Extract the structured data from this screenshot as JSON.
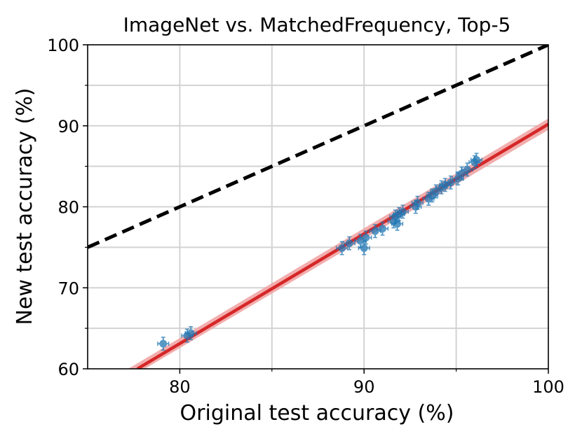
{
  "chart_data": {
    "type": "scatter",
    "title": "ImageNet vs. MatchedFrequency, Top-5",
    "xlabel": "Original test accuracy (%)",
    "ylabel": "New test accuracy (%)",
    "xlim": [
      75,
      100
    ],
    "ylim": [
      60,
      100
    ],
    "xticks": [
      80,
      90,
      100
    ],
    "yticks": [
      60,
      70,
      80,
      90,
      100
    ],
    "grid": true,
    "colors": {
      "points": "#1f77b4",
      "fit_line": "#d62728",
      "fit_band": "#f0a0a0",
      "reference_line": "#000000",
      "grid": "#d3d3d3"
    },
    "reference_line": {
      "x": [
        75,
        100
      ],
      "y": [
        75,
        100
      ],
      "style": "dashed"
    },
    "fit_line": {
      "x": [
        77.7,
        100
      ],
      "y": [
        60,
        90.2
      ]
    },
    "fit_band": {
      "x": [
        77.2,
        100
      ],
      "upper": [
        60,
        90.9
      ],
      "lower": [
        60,
        89.5
      ]
    },
    "points": [
      {
        "x": 79.1,
        "y": 63.1,
        "xerr": 0.3,
        "yerr": 0.8
      },
      {
        "x": 80.4,
        "y": 64.1,
        "xerr": 0.3,
        "yerr": 0.8
      },
      {
        "x": 80.6,
        "y": 64.4,
        "xerr": 0.3,
        "yerr": 0.8
      },
      {
        "x": 88.8,
        "y": 74.9,
        "xerr": 0.3,
        "yerr": 0.8
      },
      {
        "x": 89.2,
        "y": 75.5,
        "xerr": 0.3,
        "yerr": 0.8
      },
      {
        "x": 89.8,
        "y": 75.8,
        "xerr": 0.3,
        "yerr": 0.8
      },
      {
        "x": 90.0,
        "y": 74.9,
        "xerr": 0.3,
        "yerr": 0.8
      },
      {
        "x": 90.1,
        "y": 76.2,
        "xerr": 0.3,
        "yerr": 0.8
      },
      {
        "x": 90.6,
        "y": 77.0,
        "xerr": 0.3,
        "yerr": 0.8
      },
      {
        "x": 91.0,
        "y": 77.3,
        "xerr": 0.3,
        "yerr": 0.8
      },
      {
        "x": 91.6,
        "y": 78.2,
        "xerr": 0.3,
        "yerr": 0.8
      },
      {
        "x": 91.7,
        "y": 78.8,
        "xerr": 0.3,
        "yerr": 0.8
      },
      {
        "x": 91.8,
        "y": 77.9,
        "xerr": 0.3,
        "yerr": 0.8
      },
      {
        "x": 91.9,
        "y": 79.1,
        "xerr": 0.3,
        "yerr": 0.8
      },
      {
        "x": 92.1,
        "y": 79.4,
        "xerr": 0.3,
        "yerr": 0.8
      },
      {
        "x": 92.8,
        "y": 80.0,
        "xerr": 0.3,
        "yerr": 0.8
      },
      {
        "x": 92.9,
        "y": 80.5,
        "xerr": 0.3,
        "yerr": 0.8
      },
      {
        "x": 93.5,
        "y": 81.0,
        "xerr": 0.3,
        "yerr": 0.8
      },
      {
        "x": 93.7,
        "y": 81.4,
        "xerr": 0.3,
        "yerr": 0.8
      },
      {
        "x": 93.9,
        "y": 81.9,
        "xerr": 0.3,
        "yerr": 0.8
      },
      {
        "x": 94.2,
        "y": 82.4,
        "xerr": 0.3,
        "yerr": 0.8
      },
      {
        "x": 94.4,
        "y": 82.7,
        "xerr": 0.3,
        "yerr": 0.8
      },
      {
        "x": 94.7,
        "y": 83.0,
        "xerr": 0.3,
        "yerr": 0.8
      },
      {
        "x": 95.1,
        "y": 83.5,
        "xerr": 0.3,
        "yerr": 0.8
      },
      {
        "x": 95.3,
        "y": 84.1,
        "xerr": 0.3,
        "yerr": 0.8
      },
      {
        "x": 95.6,
        "y": 84.6,
        "xerr": 0.3,
        "yerr": 0.8
      },
      {
        "x": 96.0,
        "y": 85.5,
        "xerr": 0.3,
        "yerr": 0.8
      },
      {
        "x": 96.1,
        "y": 85.8,
        "xerr": 0.3,
        "yerr": 0.8
      }
    ]
  }
}
